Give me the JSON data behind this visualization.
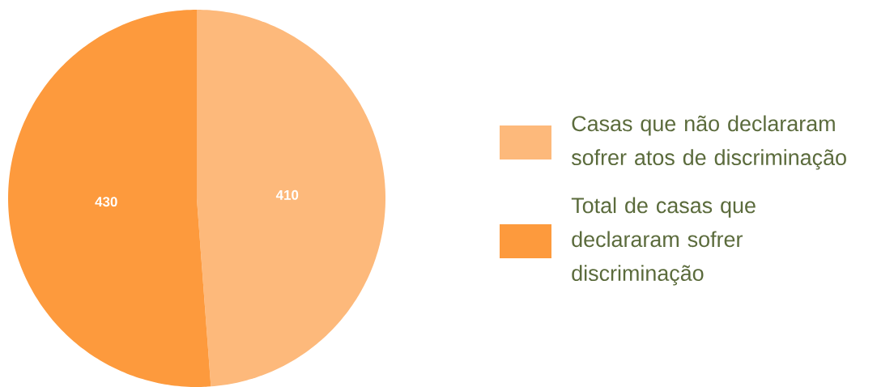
{
  "chart_data": {
    "type": "pie",
    "categories": [
      "Casas que não declararam sofrer atos de discriminação",
      "Total de casas que declararam sofrer discriminação"
    ],
    "values": [
      410,
      430
    ],
    "colors": [
      "#fdb97b",
      "#fd9a3d"
    ],
    "data_labels": true,
    "legend": "right"
  }
}
